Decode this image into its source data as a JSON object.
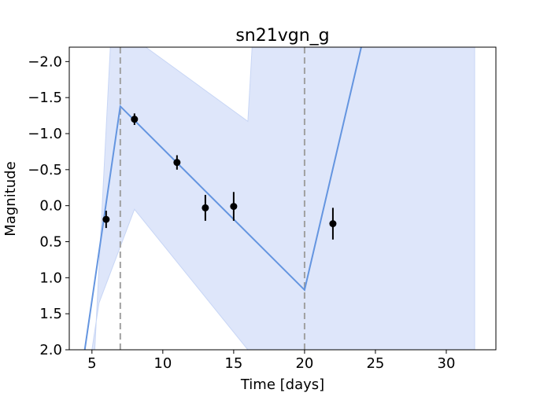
{
  "chart_data": {
    "type": "line",
    "title": "sn21vgn_g",
    "xlabel": "Time [days]",
    "ylabel": "Magnitude",
    "xlim": [
      3.4,
      33.5
    ],
    "ylim": [
      2.0,
      -2.2
    ],
    "y_inverted": true,
    "grid": false,
    "x_ticks": [
      5,
      10,
      15,
      20,
      25,
      30
    ],
    "x_tick_labels": [
      "5",
      "10",
      "15",
      "20",
      "25",
      "30"
    ],
    "y_ticks": [
      -2.0,
      -1.5,
      -1.0,
      -0.5,
      0.0,
      0.5,
      1.0,
      1.5,
      2.0
    ],
    "y_tick_labels": [
      "−2.0",
      "−1.5",
      "−1.0",
      "−0.5",
      "0.0",
      "0.5",
      "1.0",
      "1.5",
      "2.0"
    ],
    "model_line": {
      "color": "#6495e0",
      "x": [
        3.9,
        7.0,
        20.0,
        24.0
      ],
      "y": [
        2.8,
        -1.38,
        1.17,
        -2.2
      ]
    },
    "uncertainty_band": {
      "color": "#dce5fa",
      "upper_x": [
        5.2,
        6.3,
        7.0,
        8.8,
        16.0,
        16.3,
        20.0,
        32.0
      ],
      "upper_y": [
        2.0,
        -2.2,
        -2.2,
        -2.2,
        -1.17,
        -2.2,
        -2.2,
        -2.2
      ],
      "lower_x": [
        32.0,
        16.0,
        8.0,
        5.5,
        5.0,
        4.0
      ],
      "lower_y": [
        2.0,
        2.0,
        0.05,
        1.35,
        2.0,
        2.0
      ]
    },
    "vertical_lines": {
      "color": "#a0a0a0",
      "x": [
        7,
        20
      ]
    },
    "observations": {
      "color": "#000000",
      "x": [
        6.0,
        8.0,
        11.0,
        13.0,
        15.0,
        22.0
      ],
      "y": [
        0.19,
        -1.2,
        -0.6,
        0.03,
        0.01,
        0.25
      ],
      "yerr": [
        0.12,
        0.08,
        0.1,
        0.18,
        0.2,
        0.22
      ]
    }
  }
}
